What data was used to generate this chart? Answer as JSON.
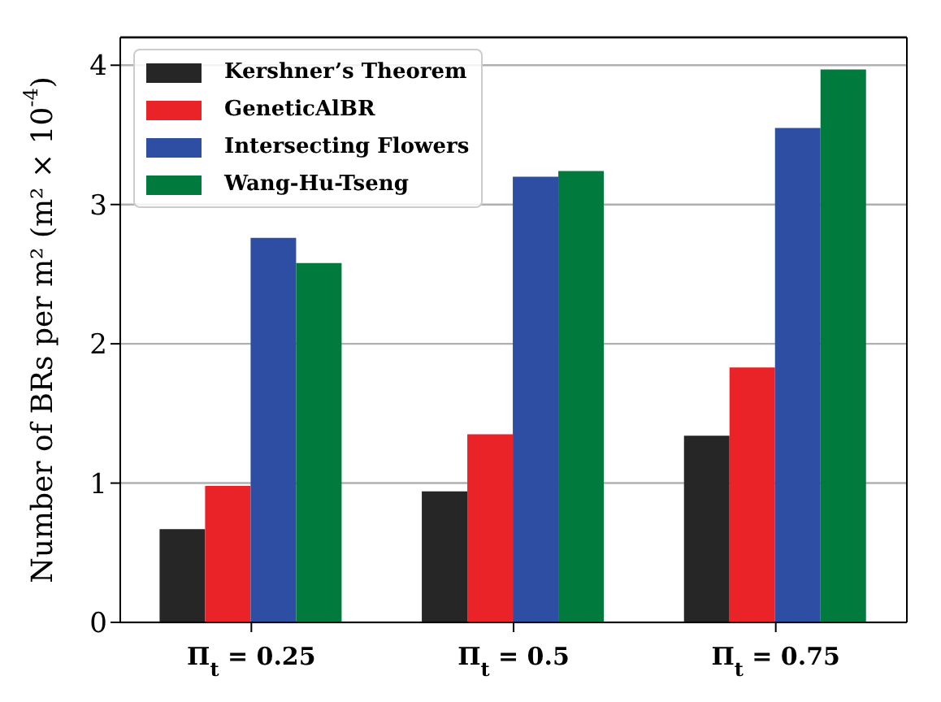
{
  "chart_data": {
    "type": "bar",
    "ylabel": "Number of BRs per m² (m² × 10$^{-4}$)",
    "categories": [
      "Π$_{t}$ = 0.25",
      "Π$_{t}$ = 0.5",
      "Π$_{t}$ = 0.75"
    ],
    "series": [
      {
        "name": "Kershner’s Theorem",
        "color": "#262626",
        "values": [
          0.67,
          0.94,
          1.34
        ]
      },
      {
        "name": "GeneticAlBR",
        "color": "#ea2328",
        "values": [
          0.98,
          1.35,
          1.83
        ]
      },
      {
        "name": "Intersecting Flowers",
        "color": "#2e4ea3",
        "values": [
          2.76,
          3.2,
          3.55
        ]
      },
      {
        "name": "Wang-Hu-Tseng",
        "color": "#007a3d",
        "values": [
          2.58,
          3.24,
          3.97
        ]
      }
    ],
    "ylim": [
      0,
      4.2
    ],
    "yticks": [
      0,
      1,
      2,
      3,
      4
    ],
    "grid": "y",
    "legend": "top left"
  }
}
